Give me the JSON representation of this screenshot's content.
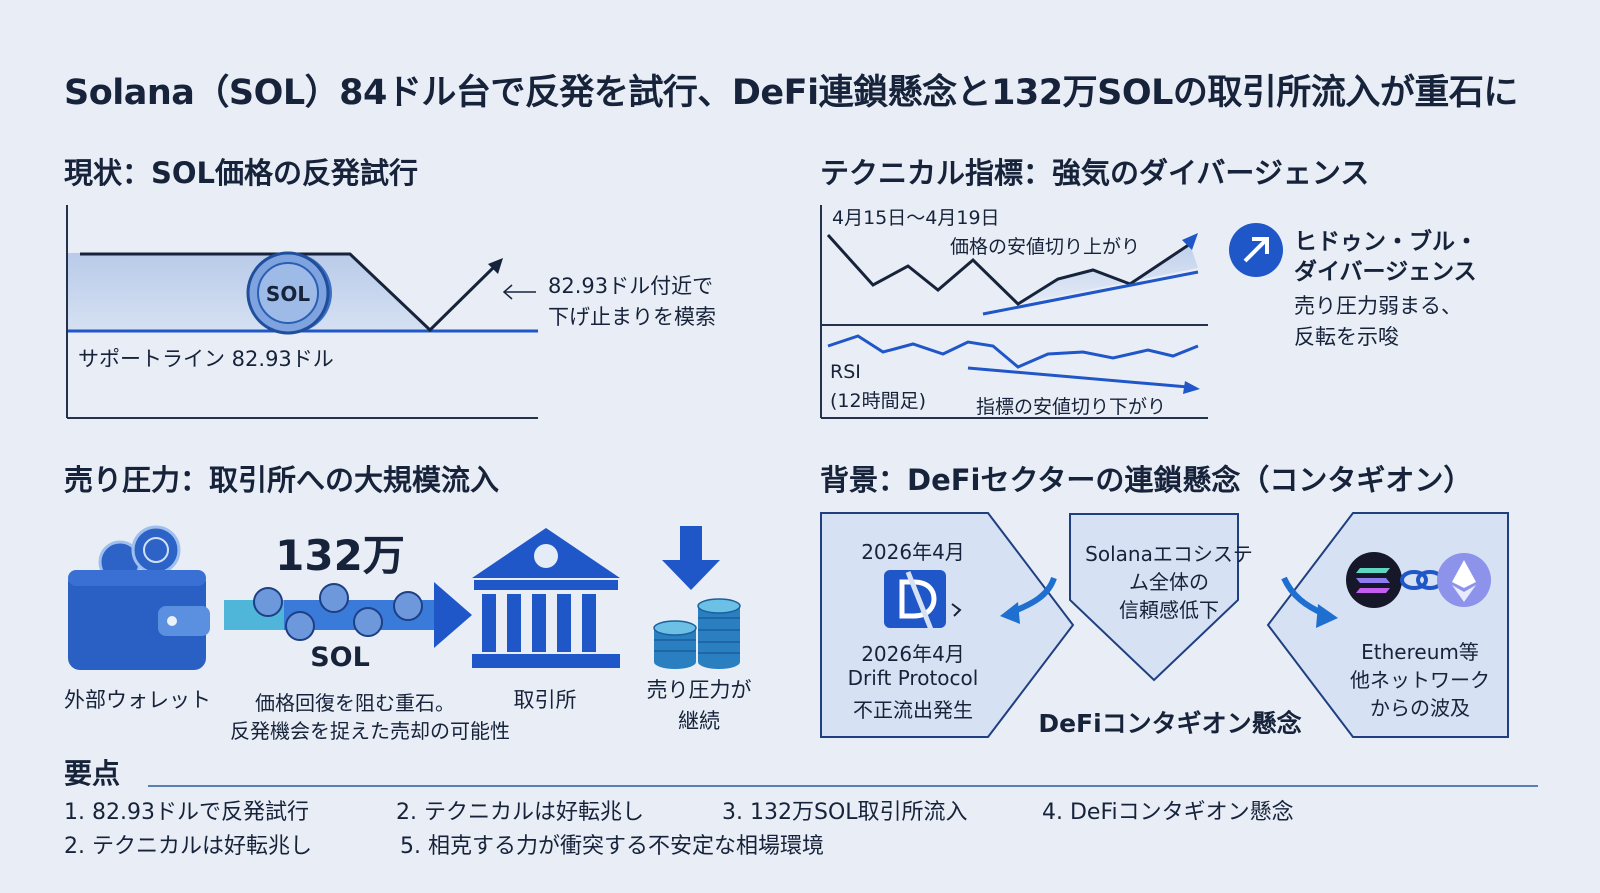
{
  "title": "Solana（SOL）84ドル台で反発を試行、DeFi連鎖懸念と132万SOLの取引所流入が重石に",
  "sections": {
    "current": {
      "heading": "現状：SOL価格の反発試行",
      "coin_label": "SOL",
      "support_label": "サポートライン 82.93ドル",
      "note_line1": "82.93ドル付近で",
      "note_line2": "下げ止まりを模索"
    },
    "technical": {
      "heading": "テクニカル指標：強気のダイバージェンス",
      "date_range": "4月15日〜4月19日",
      "price_label": "価格の安値切り上がり",
      "rsi_label": "RSI",
      "rsi_period": "(12時間足)",
      "indicator_label": "指標の安値切り下がり",
      "signal_title_line1": "ヒドゥン・ブル・",
      "signal_title_line2": "ダイバージェンス",
      "signal_desc_line1": "売り圧力弱まる、",
      "signal_desc_line2": "反転を示唆"
    },
    "selling": {
      "heading": "売り圧力：取引所への大規模流入",
      "amount": "132万",
      "unit": "SOL",
      "wallet_label": "外部ウォレット",
      "flow_line1": "価格回復を阻む重石。",
      "flow_line2": "反発機会を捉えた売却の可能性",
      "exchange_label": "取引所",
      "pressure_line1": "売り圧力が",
      "pressure_line2": "継続"
    },
    "background": {
      "heading": "背景：DeFiセクターの連鎖懸念（コンタギオン）",
      "left_date": "2026年4月",
      "left_date2": "2026年4月",
      "left_name": "Drift Protocol",
      "left_event": "不正流出発生",
      "mid_line1": "Solanaエコシステ",
      "mid_line2": "ム全体の",
      "mid_line3": "信頼感低下",
      "right_line1": "Ethereum等",
      "right_line2": "他ネットワーク",
      "right_line3": "からの波及",
      "caption": "DeFiコンタギオン懸念"
    }
  },
  "summary": {
    "heading": "要点",
    "items": [
      "1. 82.93ドルで反発試行",
      "2. テクニカルは好転兆し",
      "3. 132万SOL取引所流入",
      "4. DeFiコンタギオン懸念",
      "2. テクニカルは好転兆し",
      "5. 相克する力が衝突する不安定な相場環境"
    ]
  },
  "colors": {
    "background": "#e9eef6",
    "accent_blue": "#1f56c8",
    "dark_navy": "#16233a",
    "panel_fill": "#d6e1f3"
  },
  "icons": [
    "sol-coin-icon",
    "up-arrow-icon",
    "wallet-icon",
    "bank-icon",
    "down-arrow-icon",
    "coin-stack-icon",
    "broken-document-icon",
    "solana-logo-icon",
    "ethereum-logo-icon",
    "chain-link-icon"
  ]
}
